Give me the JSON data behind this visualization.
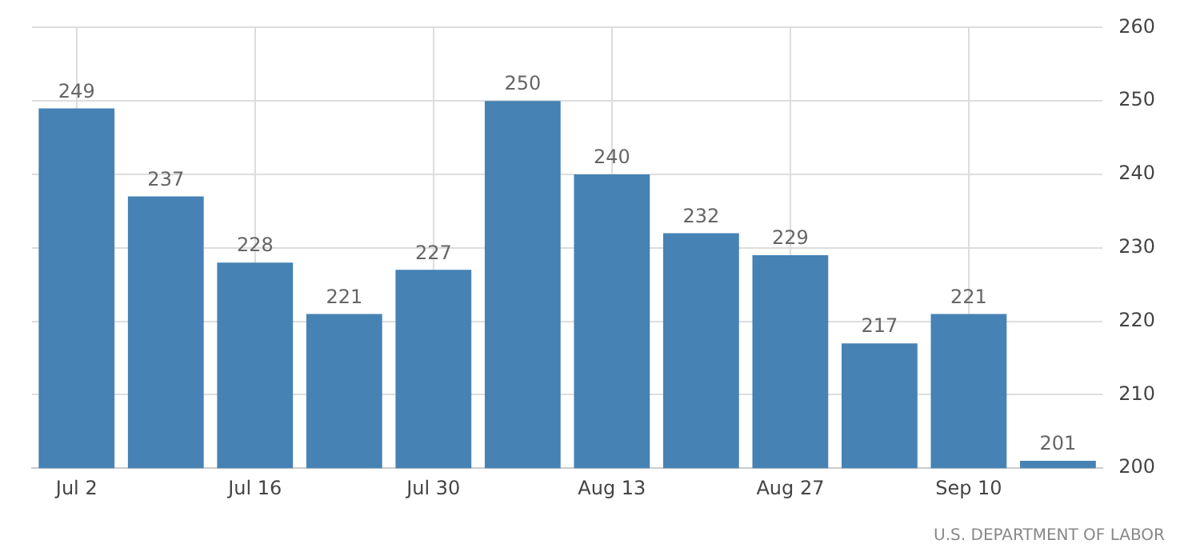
{
  "chart_data": {
    "type": "bar",
    "categories": [
      "Jul 2",
      null,
      "Jul 16",
      null,
      "Jul 30",
      null,
      "Aug 13",
      null,
      "Aug 27",
      null,
      "Sep 10",
      null
    ],
    "values": [
      249,
      237,
      228,
      221,
      227,
      250,
      240,
      232,
      229,
      217,
      221,
      201
    ],
    "color": "#4682b4",
    "ylim": [
      200,
      260
    ],
    "yticks": [
      200,
      210,
      220,
      230,
      240,
      250,
      260
    ],
    "grid": true,
    "data_labels": true,
    "annotations": [
      "U.S. DEPARTMENT OF LABOR"
    ]
  }
}
